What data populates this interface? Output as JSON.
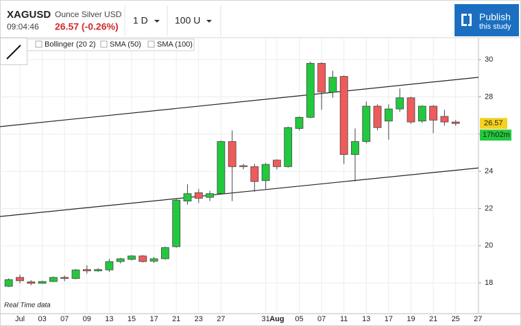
{
  "header": {
    "symbol": "XAGUSD",
    "description": "Ounce Silver USD",
    "time": "09:04:46",
    "quote": "26.57 (-0.26%)",
    "interval": "1 D",
    "range": "100 U",
    "publish": "Publish",
    "publish_sub": "this study"
  },
  "toolbar": {
    "indicators": [
      "e",
      "Bollinger (20 2)",
      "SMA (50)",
      "SMA (100)"
    ]
  },
  "chart_data": {
    "type": "candlestick",
    "categories": [
      null,
      "Jul",
      null,
      "03",
      null,
      "07",
      null,
      "09",
      null,
      "13",
      null,
      "15",
      null,
      "17",
      null,
      "21",
      null,
      "23",
      null,
      "27",
      null,
      null,
      null,
      "31",
      "Aug",
      null,
      "05",
      null,
      "07",
      null,
      "11",
      null,
      "13",
      null,
      "17",
      null,
      "19",
      null,
      "21",
      null,
      "25",
      null,
      "27"
    ],
    "open": [
      17.82,
      18.3,
      18.06,
      17.98,
      18.08,
      18.3,
      18.24,
      18.72,
      18.65,
      18.7,
      19.15,
      19.27,
      19.45,
      19.17,
      19.3,
      19.95,
      22.4,
      22.85,
      22.6,
      22.8,
      25.6,
      24.3,
      24.25,
      23.5,
      24.6,
      24.25,
      26.3,
      26.9,
      29.8,
      28.25,
      29.1,
      24.9,
      25.6,
      27.5,
      26.7,
      27.35,
      27.95,
      26.7,
      27.5,
      26.95,
      26.65,
      null,
      null
    ],
    "high": [
      18.25,
      18.45,
      18.15,
      18.12,
      18.35,
      18.4,
      18.75,
      18.95,
      18.8,
      19.3,
      19.35,
      19.5,
      19.5,
      19.4,
      19.95,
      22.5,
      23.3,
      23.05,
      22.95,
      25.65,
      26.2,
      24.4,
      24.4,
      24.45,
      24.65,
      26.4,
      26.95,
      29.9,
      29.85,
      29.4,
      29.15,
      26.3,
      27.75,
      27.6,
      27.6,
      28.45,
      28.0,
      27.55,
      27.55,
      27.3,
      26.75,
      null,
      null
    ],
    "low": [
      17.78,
      17.98,
      17.88,
      17.96,
      18.05,
      18.1,
      18.2,
      18.5,
      18.6,
      18.6,
      19.05,
      19.2,
      19.1,
      19.08,
      19.25,
      19.9,
      22.2,
      22.3,
      22.4,
      22.75,
      22.4,
      24.1,
      22.9,
      23.05,
      24.1,
      24.2,
      26.2,
      26.85,
      27.3,
      27.95,
      24.4,
      23.45,
      25.5,
      26.2,
      25.7,
      27.2,
      26.55,
      26.6,
      26.05,
      26.45,
      26.45,
      null,
      null
    ],
    "close": [
      18.18,
      18.12,
      17.98,
      18.08,
      18.3,
      18.24,
      18.7,
      18.65,
      18.72,
      19.15,
      19.3,
      19.45,
      19.15,
      19.3,
      19.9,
      22.45,
      22.8,
      22.55,
      22.8,
      25.6,
      24.25,
      24.25,
      23.45,
      24.37,
      24.25,
      26.35,
      26.9,
      29.8,
      28.26,
      29.05,
      24.9,
      25.6,
      27.5,
      26.35,
      27.35,
      27.95,
      26.65,
      27.5,
      26.75,
      26.65,
      26.57,
      null,
      null
    ],
    "up_color": "#22c93e",
    "down_color": "#ef5b5b",
    "ylim": [
      16.35,
      31.18
    ],
    "yticks": [
      18,
      20,
      22,
      24,
      26,
      28,
      30
    ],
    "grid": true,
    "trend_lines": [
      {
        "start": 26.4,
        "end": 29.05
      },
      {
        "start": 21.57,
        "end": 24.18
      }
    ],
    "last_price": 26.57,
    "countdown": "17h02m",
    "footnote": "Real Time data"
  }
}
